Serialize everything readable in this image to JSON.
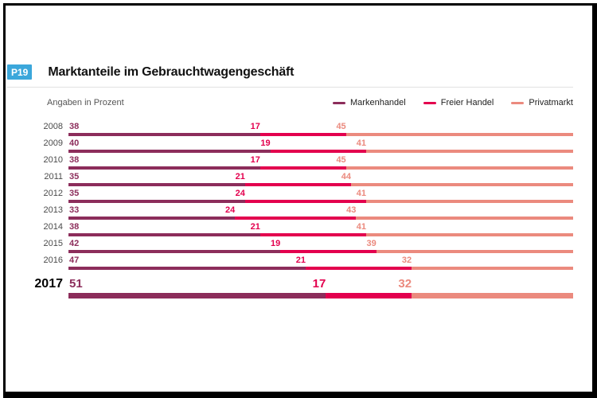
{
  "header": {
    "badge": "P19",
    "title": "Marktanteile im Gebrauchtwagengeschäft"
  },
  "chart_data": {
    "type": "bar",
    "variant": "horizontal-stacked",
    "note": "Angaben in Prozent",
    "unit": "percent",
    "x_total": 100,
    "legend_position": "top-right",
    "grid": false,
    "categories": [
      "2008",
      "2009",
      "2010",
      "2011",
      "2012",
      "2013",
      "2014",
      "2015",
      "2016",
      "2017"
    ],
    "series": [
      {
        "name": "Markenhandel",
        "color": "#8C2D5B",
        "values": [
          38,
          40,
          38,
          35,
          35,
          33,
          38,
          42,
          47,
          51
        ]
      },
      {
        "name": "Freier Handel",
        "color": "#E3004E",
        "values": [
          17,
          19,
          17,
          21,
          24,
          24,
          21,
          19,
          21,
          17
        ]
      },
      {
        "name": "Privatmarkt",
        "color": "#EB8A7E",
        "values": [
          45,
          41,
          45,
          44,
          41,
          43,
          41,
          39,
          32,
          32
        ]
      }
    ],
    "emphasis_category": "2017"
  },
  "colors": {
    "badge_bg": "#3BA7DB",
    "badge_text": "#FFFFFF",
    "title_text": "#111111",
    "year_text": "#4B4B4B",
    "divider": "#E2E2E2",
    "frame": "#000000"
  }
}
